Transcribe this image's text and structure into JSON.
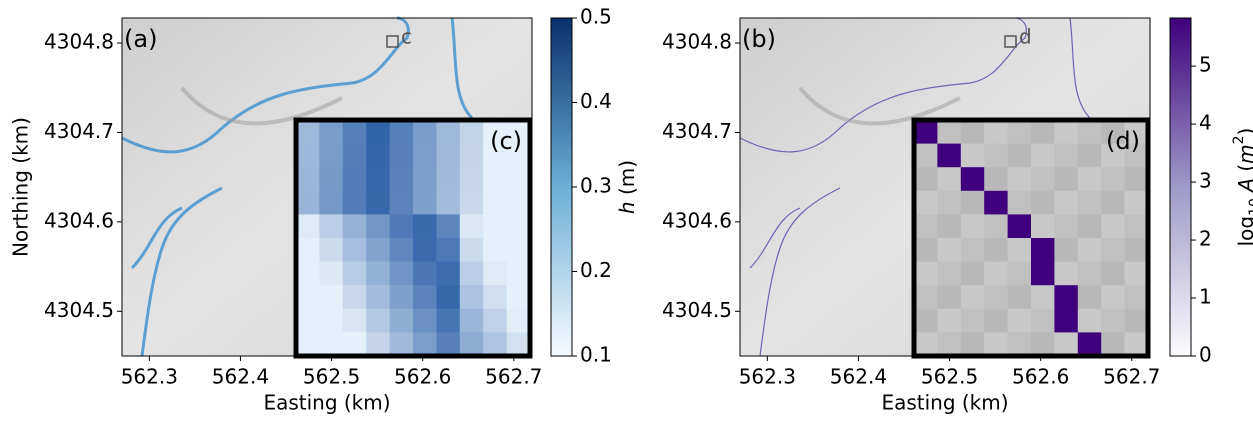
{
  "chart_data": [
    {
      "type": "image",
      "panel_label": "(a)",
      "marker_label": "c",
      "inset_label": "(c)",
      "xlabel": "Easting (km)",
      "ylabel": "Northing (km)",
      "xlim": [
        562.27,
        562.72
      ],
      "ylim": [
        4304.45,
        4304.828
      ],
      "xticks": [
        562.3,
        562.4,
        562.5,
        562.6,
        562.7
      ],
      "yticks": [
        4304.5,
        4304.6,
        4304.7,
        4304.8
      ],
      "colorbar": {
        "colors": [
          "#f7fbff",
          "#6baed6",
          "#08306b"
        ],
        "clim": [
          0.1,
          0.5
        ],
        "ticks": [
          0.1,
          0.2,
          0.3,
          0.4,
          0.5
        ],
        "label": [
          {
            "text": "h",
            "style": "italic"
          },
          {
            "text": " (m)"
          }
        ]
      }
    },
    {
      "type": "image",
      "panel_label": "(b)",
      "marker_label": "d",
      "inset_label": "(d)",
      "xlabel": "Easting (km)",
      "xlim": [
        562.27,
        562.72
      ],
      "ylim": [
        4304.45,
        4304.828
      ],
      "xticks": [
        562.3,
        562.4,
        562.5,
        562.6,
        562.7
      ],
      "yticks": [
        4304.5,
        4304.6,
        4304.7,
        4304.8
      ],
      "colorbar": {
        "colors": [
          "#fcfbfd",
          "#9e9ac8",
          "#3f007d"
        ],
        "clim": [
          0,
          5.83
        ],
        "ticks": [
          0,
          1,
          2,
          3,
          4,
          5
        ],
        "label": [
          {
            "text": "log"
          },
          {
            "text": "10",
            "style": "sub"
          },
          {
            "text": " A",
            "style": "italic"
          },
          {
            "text": " ("
          },
          {
            "text": "m",
            "style": "italic"
          },
          {
            "text": "2",
            "style": "sup"
          },
          {
            "text": ")"
          }
        ]
      }
    }
  ]
}
